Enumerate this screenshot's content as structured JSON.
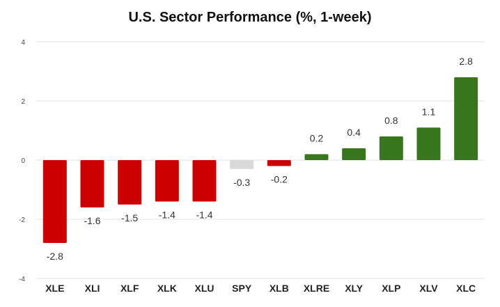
{
  "chart_data": {
    "type": "bar",
    "title": "U.S. Sector Performance (%, 1-week)",
    "categories": [
      "XLE",
      "XLI",
      "XLF",
      "XLK",
      "XLU",
      "SPY",
      "XLB",
      "XLRE",
      "XLY",
      "XLP",
      "XLV",
      "XLC"
    ],
    "values": [
      -2.8,
      -1.6,
      -1.5,
      -1.4,
      -1.4,
      -0.3,
      -0.2,
      0.2,
      0.4,
      0.8,
      1.1,
      2.8
    ],
    "value_labels": [
      "-2.8",
      "-1.6",
      "-1.5",
      "-1.4",
      "-1.4",
      "-0.3",
      "-0.2",
      "0.2",
      "0.4",
      "0.8",
      "1.1",
      "2.8"
    ],
    "bar_colors": [
      "#cc0000",
      "#cc0000",
      "#cc0000",
      "#cc0000",
      "#cc0000",
      "#d9d9d9",
      "#cc0000",
      "#38761d",
      "#38761d",
      "#38761d",
      "#38761d",
      "#38761d"
    ],
    "ylim": [
      -4,
      4
    ],
    "yticks": [
      4,
      2,
      0,
      -2,
      -4
    ],
    "grid": true,
    "legend": "none"
  }
}
